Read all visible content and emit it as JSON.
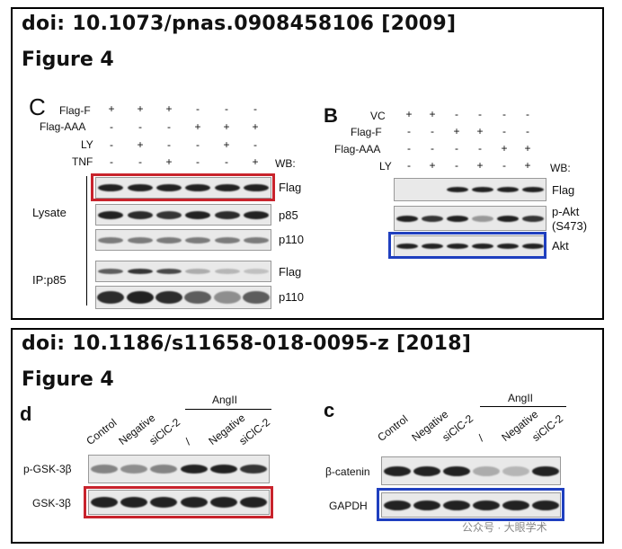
{
  "top": {
    "doi": "doi: 10.1073/pnas.0908458106 [2009]",
    "figure": "Figure 4",
    "panel_c": {
      "label": "C",
      "rows": [
        {
          "label": "Flag-F",
          "marks": [
            "+",
            "+",
            "+",
            "-",
            "-",
            "-"
          ]
        },
        {
          "label": "Flag-AAA",
          "marks": [
            "-",
            "-",
            "-",
            "+",
            "+",
            "+"
          ]
        },
        {
          "label": "LY",
          "marks": [
            "-",
            "+",
            "-",
            "-",
            "+",
            "-"
          ]
        },
        {
          "label": "TNF",
          "marks": [
            "-",
            "-",
            "+",
            "-",
            "-",
            "+"
          ]
        }
      ],
      "wb": "WB:",
      "group_lysate": "Lysate",
      "group_ip": "IP:p85",
      "blots": [
        "Flag",
        "p85",
        "p110",
        "Flag",
        "p110"
      ]
    },
    "panel_b": {
      "label": "B",
      "rows": [
        {
          "label": "VC",
          "marks": [
            "+",
            "+",
            "-",
            "-",
            "-",
            "-"
          ]
        },
        {
          "label": "Flag-F",
          "marks": [
            "-",
            "-",
            "+",
            "+",
            "-",
            "-"
          ]
        },
        {
          "label": "Flag-AAA",
          "marks": [
            "-",
            "-",
            "-",
            "-",
            "+",
            "+"
          ]
        },
        {
          "label": "LY",
          "marks": [
            "-",
            "+",
            "-",
            "+",
            "-",
            "+"
          ]
        }
      ],
      "wb": "WB:",
      "blots": [
        "Flag",
        "p-Akt",
        "(S473)",
        "Akt"
      ]
    }
  },
  "bottom": {
    "doi": "doi: 10.1186/s11658-018-0095-z [2018]",
    "figure": "Figure 4",
    "panel_d": {
      "label": "d",
      "group": "AngII",
      "lanes": [
        "Control",
        "Negative",
        "siClC-2",
        "/",
        "Negative",
        "siClC-2"
      ],
      "blots": [
        "p-GSK-3β",
        "GSK-3β"
      ]
    },
    "panel_c": {
      "label": "c",
      "group": "AngII",
      "lanes": [
        "Control",
        "Negative",
        "siClC-2",
        "/",
        "Negative",
        "siClC-2"
      ],
      "blots": [
        "β-catenin",
        "GAPDH"
      ]
    }
  },
  "watermark": "公众号 · 大眼学术",
  "colors": {
    "highlight_red": "#c8232c",
    "highlight_blue": "#1f3fbf"
  }
}
